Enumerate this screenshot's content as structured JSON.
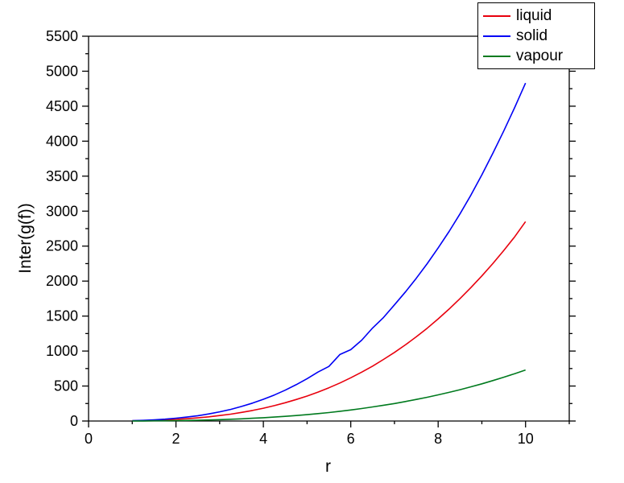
{
  "chart_data": {
    "type": "line",
    "title": "",
    "xlabel": "r",
    "ylabel": "Inter(g(f))",
    "xlim": [
      0,
      11
    ],
    "ylim": [
      0,
      5500
    ],
    "x_major_ticks": [
      0,
      2,
      4,
      6,
      8,
      10
    ],
    "x_minor_ticks": [
      1,
      3,
      5,
      7,
      9,
      11
    ],
    "y_major_ticks": [
      0,
      500,
      1000,
      1500,
      2000,
      2500,
      3000,
      3500,
      4000,
      4500,
      5000,
      5500
    ],
    "y_minor_step": 250,
    "grid": false,
    "legend_position": "top-right",
    "frame": "box",
    "series": [
      {
        "name": "liquid",
        "color": "#e8000d",
        "x": [
          1.0,
          1.25,
          1.5,
          1.75,
          2.0,
          2.25,
          2.5,
          2.75,
          3.0,
          3.25,
          3.5,
          3.75,
          4.0,
          4.25,
          4.5,
          4.75,
          5.0,
          5.25,
          5.5,
          5.75,
          6.0,
          6.25,
          6.5,
          6.75,
          7.0,
          7.25,
          7.5,
          7.75,
          8.0,
          8.25,
          8.5,
          8.75,
          9.0,
          9.25,
          9.5,
          9.75,
          10.0
        ],
        "y": [
          3,
          6,
          10,
          16,
          23,
          33,
          45,
          60,
          78,
          98,
          123,
          151,
          183,
          220,
          261,
          307,
          357,
          413,
          475,
          543,
          618,
          698,
          785,
          880,
          980,
          1088,
          1203,
          1327,
          1460,
          1600,
          1750,
          1908,
          2075,
          2250,
          2437,
          2633,
          2850
        ]
      },
      {
        "name": "solid",
        "color": "#0000f5",
        "x": [
          1.0,
          1.25,
          1.5,
          1.75,
          2.0,
          2.25,
          2.5,
          2.75,
          3.0,
          3.25,
          3.5,
          3.75,
          4.0,
          4.25,
          4.5,
          4.75,
          5.0,
          5.25,
          5.5,
          5.75,
          6.0,
          6.25,
          6.5,
          6.75,
          7.0,
          7.25,
          7.5,
          7.75,
          8.0,
          8.25,
          8.5,
          8.75,
          9.0,
          9.25,
          9.5,
          9.75,
          10.0
        ],
        "y": [
          5,
          9,
          16,
          27,
          40,
          56,
          76,
          101,
          131,
          166,
          208,
          256,
          311,
          372,
          441,
          519,
          605,
          700,
          780,
          950,
          1020,
          1155,
          1330,
          1480,
          1660,
          1845,
          2040,
          2250,
          2475,
          2710,
          2960,
          3230,
          3520,
          3825,
          4145,
          4480,
          4830
        ]
      },
      {
        "name": "vapour",
        "color": "#007a1e",
        "x": [
          1.0,
          1.25,
          1.5,
          1.75,
          2.0,
          2.25,
          2.5,
          2.75,
          3.0,
          3.25,
          3.5,
          3.75,
          4.0,
          4.25,
          4.5,
          4.75,
          5.0,
          5.25,
          5.5,
          5.75,
          6.0,
          6.25,
          6.5,
          6.75,
          7.0,
          7.25,
          7.5,
          7.75,
          8.0,
          8.25,
          8.5,
          8.75,
          9.0,
          9.25,
          9.5,
          9.75,
          10.0
        ],
        "y": [
          1,
          1,
          3,
          4,
          6,
          8,
          11,
          15,
          20,
          25,
          31,
          39,
          47,
          56,
          67,
          78,
          91,
          106,
          121,
          139,
          158,
          178,
          201,
          225,
          250,
          278,
          308,
          340,
          374,
          410,
          448,
          489,
          532,
          578,
          626,
          677,
          730
        ]
      }
    ]
  }
}
